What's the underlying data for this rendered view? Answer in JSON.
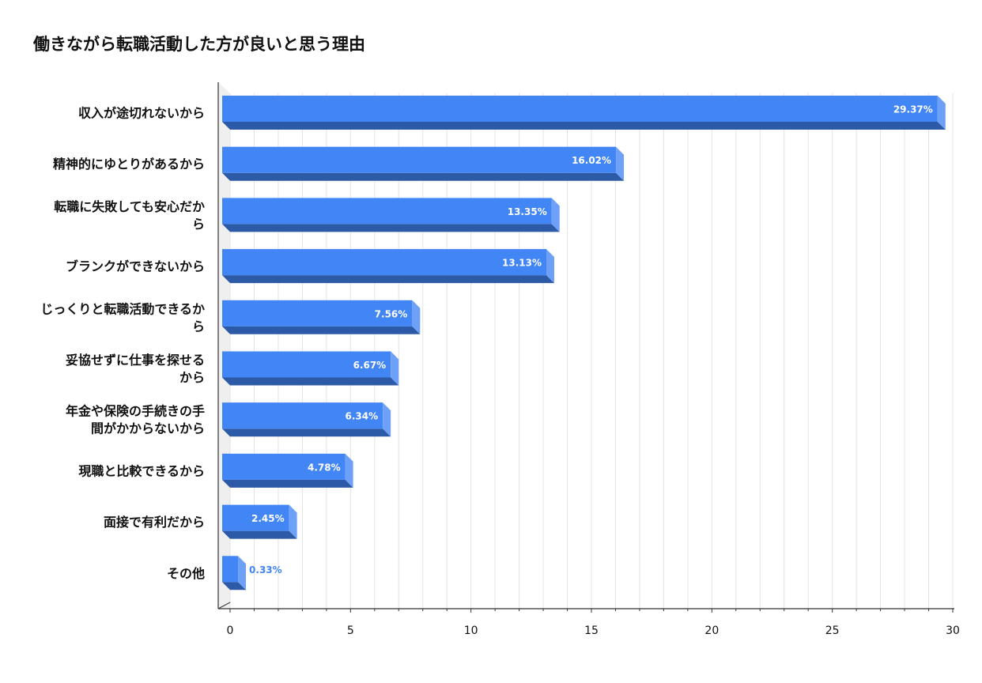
{
  "chart_data": {
    "type": "bar",
    "orientation": "horizontal",
    "style": "3d",
    "title": "働きながら転職活動した方が良いと思う理由",
    "categories": [
      [
        "収入が途切れないから"
      ],
      [
        "精神的にゆとりがあるから"
      ],
      [
        "転職に失敗しても安心だか",
        "ら"
      ],
      [
        "ブランクができないから"
      ],
      [
        "じっくりと転職活動できるか",
        "ら"
      ],
      [
        "妥協せずに仕事を探せる",
        "から"
      ],
      [
        "年金や保険の手続きの手",
        "間がかからないから"
      ],
      [
        "現職と比較できるから"
      ],
      [
        "面接で有利だから"
      ],
      [
        "その他"
      ]
    ],
    "values": [
      29.37,
      16.02,
      13.35,
      13.13,
      7.56,
      6.67,
      6.34,
      4.78,
      2.45,
      0.33
    ],
    "data_labels": [
      "29.37%",
      "16.02%",
      "13.35%",
      "13.13%",
      "7.56%",
      "6.67%",
      "6.34%",
      "4.78%",
      "2.45%",
      "0.33%"
    ],
    "xlim": [
      0,
      30
    ],
    "xticks": [
      0,
      5,
      10,
      15,
      20,
      25,
      30
    ],
    "xlabel": "",
    "ylabel": "",
    "grid": true,
    "legend": "none",
    "colors": {
      "bar_front": "#4285f4",
      "bar_top": "#2d5aa7",
      "bar_side": "#6fa0f7",
      "grid": "#e3e3e3",
      "axis": "#333333",
      "label_inside": "#ffffff",
      "label_outside": "#4285f4"
    }
  }
}
